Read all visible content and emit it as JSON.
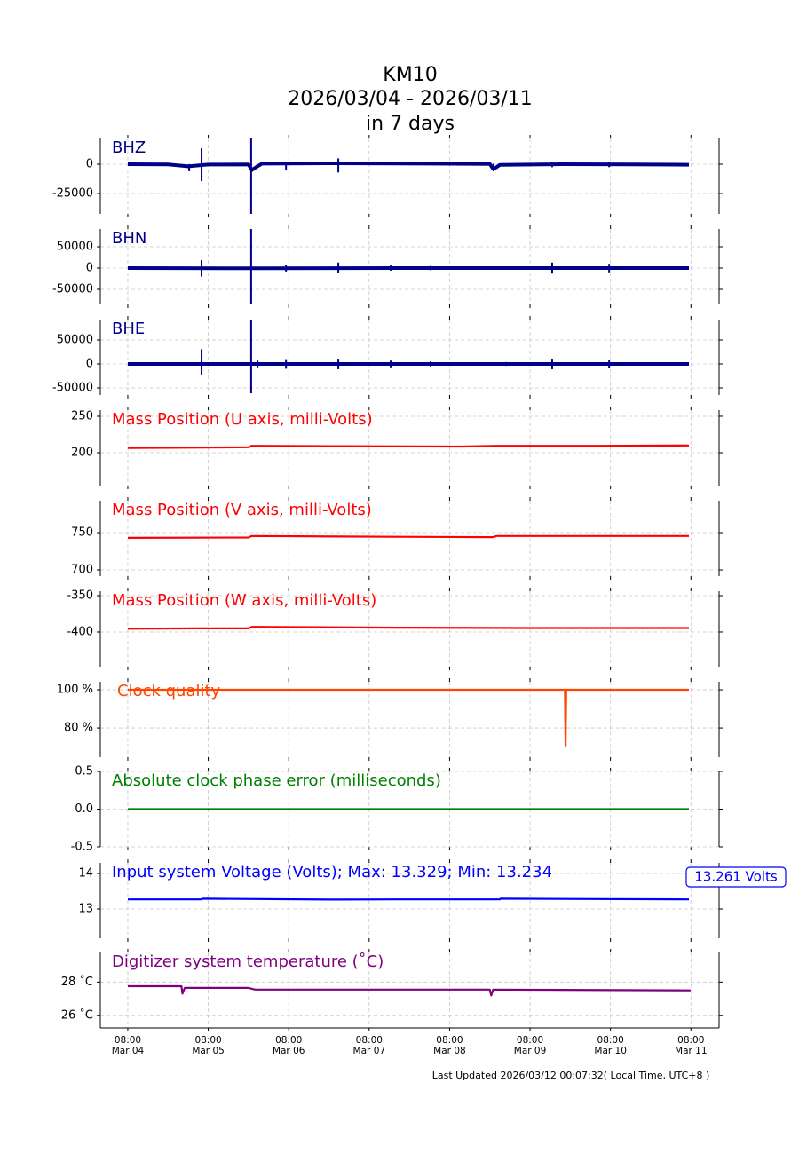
{
  "header": {
    "title": [
      "KM10",
      "2026/03/04 - 2026/03/11",
      "in 7 days"
    ],
    "footer": "Last Updated 2026/03/12 00:07:32( Local Time, UTC+8 )"
  },
  "chart_data": [
    {
      "type": "spikes",
      "label": "BHZ",
      "color": "#00008b",
      "x": [
        0,
        12,
        18,
        24,
        36,
        37,
        38,
        40,
        60,
        90,
        108,
        109,
        110,
        111,
        130,
        150,
        167.4
      ],
      "values": [
        0,
        -200,
        -1800,
        -300,
        -200,
        -5000,
        -3000,
        500,
        800,
        500,
        200,
        -4000,
        -2500,
        -500,
        0,
        -200,
        -400
      ],
      "spike_x": [
        18.3,
        22,
        36.8,
        47.2,
        62.8,
        109.1,
        126.6,
        143.6
      ],
      "spike_max": [
        0,
        13600,
        22000,
        1500,
        5000,
        500,
        1500,
        1500
      ],
      "spike_min": [
        -6000,
        -14400,
        -42400,
        -5000,
        -7000,
        -6000,
        -2500,
        -2500
      ],
      "ylim": [
        -42400,
        22000
      ],
      "yticks": [
        -25000,
        0
      ]
    },
    {
      "type": "spikes",
      "label": "BHN",
      "color": "#00008b",
      "x": [
        0,
        40,
        80,
        120,
        167.4
      ],
      "values": [
        0,
        -500,
        0,
        0,
        0
      ],
      "spike_x": [
        18,
        22,
        36.8,
        47.2,
        62.8,
        78.4,
        90.3,
        103.6,
        112.9,
        126.6,
        143.6
      ],
      "spike_max": [
        3000,
        19000,
        91700,
        8000,
        13000,
        6000,
        5000,
        4000,
        4000,
        13000,
        10000
      ],
      "spike_min": [
        -3000,
        -20000,
        -85400,
        -8000,
        -12000,
        -6000,
        -5000,
        -4000,
        -4000,
        -13000,
        -10000
      ],
      "ylim": [
        -85400,
        91700
      ],
      "yticks": [
        -50000,
        0,
        50000
      ]
    },
    {
      "type": "spikes",
      "label": "BHE",
      "color": "#00008b",
      "x": [
        0,
        80,
        167.4
      ],
      "values": [
        0,
        0,
        0
      ],
      "spike_x": [
        18,
        22,
        36.8,
        38.7,
        47.2,
        62.8,
        78.4,
        90.3,
        112.9,
        126.6,
        143.6
      ],
      "spike_max": [
        3000,
        31000,
        92600,
        7000,
        10000,
        11000,
        7000,
        5000,
        4000,
        11000,
        8000
      ],
      "spike_min": [
        -3000,
        -22000,
        -61000,
        -7000,
        -10000,
        -11000,
        -7000,
        -5000,
        -4000,
        -11000,
        -8000
      ],
      "ylim": [
        -64800,
        92600
      ],
      "yticks": [
        -50000,
        0,
        50000
      ]
    },
    {
      "type": "line",
      "label": "Mass Position (U axis, milli-Volts)",
      "color": "#ff0000",
      "x": [
        0,
        18,
        36,
        37,
        60,
        100,
        110,
        140,
        167.4
      ],
      "values": [
        206.5,
        207,
        207.5,
        209.5,
        209,
        208.5,
        209.5,
        209.5,
        210
      ],
      "ylim": [
        154.9,
        258.5
      ],
      "yticks": [
        200,
        250
      ]
    },
    {
      "type": "line",
      "label": "Mass Position (V axis, milli-Volts)",
      "color": "#ff0000",
      "x": [
        0,
        36,
        37,
        80,
        109,
        110,
        167.4
      ],
      "values": [
        743,
        743.5,
        745.5,
        744.5,
        744,
        745.5,
        745.5
      ],
      "ylim": [
        691.7,
        792.9
      ],
      "yticks": [
        700,
        750
      ]
    },
    {
      "type": "line",
      "label": "Mass Position (W axis, milli-Volts)",
      "color": "#ff0000",
      "x": [
        0,
        20,
        36,
        37,
        80,
        120,
        167.4
      ],
      "values": [
        -395.5,
        -395,
        -395,
        -393,
        -394,
        -394.5,
        -394.5
      ],
      "ylim": [
        -447.6,
        -343.9
      ],
      "yticks": [
        -400,
        -350
      ]
    },
    {
      "type": "line",
      "label": "Clock quality",
      "color": "#ff4500",
      "x": [
        0,
        130.4,
        130.6,
        130.8,
        167.4
      ],
      "values": [
        100,
        100,
        70.7,
        100,
        100
      ],
      "ylim": [
        64.7,
        104.2
      ],
      "yticks": [
        {
          "value": 80,
          "label": "80 %"
        },
        {
          "value": 100,
          "label": "100 %"
        }
      ]
    },
    {
      "type": "line",
      "label": "Absolute clock phase error (milliseconds)",
      "color": "#008000",
      "x": [
        0,
        167.4
      ],
      "values": [
        0,
        0
      ],
      "ylim": [
        -0.5,
        0.5
      ],
      "yticks": [
        -0.5,
        {
          "value": 0,
          "label": "0.0"
        },
        0.5
      ]
    },
    {
      "type": "line",
      "label": "Input system Voltage (Volts);    Max: 13.329; Min: 13.234",
      "color": "#0000ff",
      "annotation": "13.261 Volts",
      "x": [
        0,
        22,
        22.2,
        60,
        80,
        111,
        111.2,
        167.4
      ],
      "values": [
        13.27,
        13.27,
        13.29,
        13.265,
        13.27,
        13.27,
        13.29,
        13.27
      ],
      "ylim": [
        12.175,
        14.3
      ],
      "yticks": [
        13,
        14
      ]
    },
    {
      "type": "line",
      "label": "Digitizer system temperature (˚C)",
      "color": "#800080",
      "x": [
        0,
        16,
        16.3,
        17,
        36,
        38,
        108,
        108.4,
        109,
        167.9
      ],
      "values": [
        27.75,
        27.75,
        27.3,
        27.65,
        27.65,
        27.55,
        27.55,
        27.2,
        27.55,
        27.5
      ],
      "ylim": [
        25.24,
        29.78
      ],
      "yticks": [
        {
          "value": 26,
          "label": "26 ˚C"
        },
        {
          "value": 28,
          "label": "28 ˚C"
        }
      ],
      "xlim": [
        -8.2,
        176.4
      ],
      "xticks": [
        {
          "value": 0,
          "label": [
            "08:00",
            "Mar 04"
          ]
        },
        {
          "value": 24,
          "label": [
            "08:00",
            "Mar 05"
          ]
        },
        {
          "value": 48,
          "label": [
            "08:00",
            "Mar 06"
          ]
        },
        {
          "value": 72,
          "label": [
            "08:00",
            "Mar 07"
          ]
        },
        {
          "value": 96,
          "label": [
            "08:00",
            "Mar 08"
          ]
        },
        {
          "value": 120,
          "label": [
            "08:00",
            "Mar 09"
          ]
        },
        {
          "value": 144,
          "label": [
            "08:00",
            "Mar 10"
          ]
        },
        {
          "value": 168,
          "label": [
            "08:00",
            "Mar 11"
          ]
        }
      ]
    }
  ]
}
